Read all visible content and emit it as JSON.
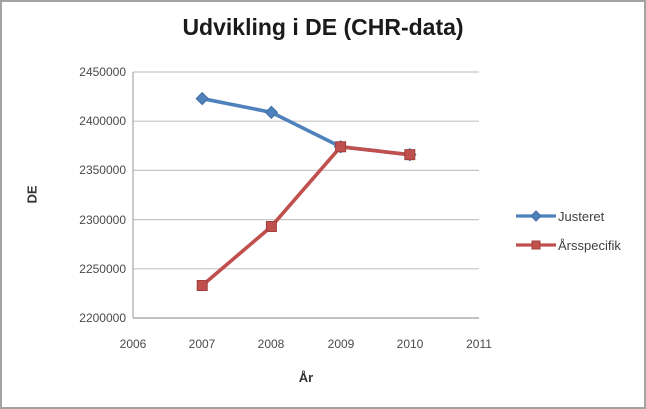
{
  "chart_data": {
    "type": "line",
    "title": "Udvikling i DE (CHR-data)",
    "xlabel": "År",
    "ylabel": "DE",
    "x": [
      2007,
      2008,
      2009,
      2010
    ],
    "series": [
      {
        "name": "Justeret",
        "color": "#4f81bd",
        "marker_border": "#3d6da3",
        "marker": "diamond",
        "values": [
          2423000,
          2409000,
          2374000,
          2366000
        ]
      },
      {
        "name": "Årsspecifik",
        "color": "#c0504d",
        "marker_border": "#a03f3c",
        "marker": "square",
        "values": [
          2233000,
          2293000,
          2374000,
          2366000
        ]
      }
    ],
    "xlim": [
      2006,
      2011
    ],
    "ylim": [
      2200000,
      2450000
    ],
    "xticks": [
      2006,
      2007,
      2008,
      2009,
      2010,
      2011
    ],
    "yticks": [
      2200000,
      2250000,
      2300000,
      2350000,
      2400000,
      2450000
    ],
    "grid": true,
    "legend_position": "right",
    "gridline_color": "#c6c6c6",
    "axis_color": "#a6a6a6",
    "background": "#ffffff"
  }
}
